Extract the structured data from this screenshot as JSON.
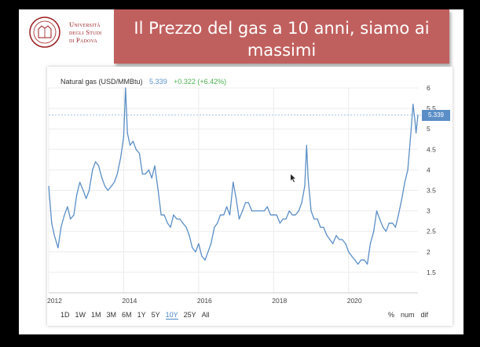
{
  "header": {
    "university_line1": "Università",
    "university_line2": "degli Studi",
    "university_line3": "di Padova",
    "title_line1": "Il Prezzo del gas a 10 anni, siamo ai",
    "title_line2": "massimi"
  },
  "legend": {
    "name": "Natural gas (USD/MMBtu)",
    "value": "5.339",
    "change": "+0.322 (+6.42%)"
  },
  "badge": "5.339",
  "ranges": [
    "1D",
    "1W",
    "1M",
    "3M",
    "6M",
    "1Y",
    "5Y",
    "10Y",
    "25Y",
    "All"
  ],
  "active_range": "10Y",
  "right_buttons": [
    "%",
    "num",
    "dif"
  ],
  "colors": {
    "line": "#5b8ec6",
    "title_bg": "#c0605e",
    "brand": "#9b1b1f"
  },
  "chart_data": {
    "type": "line",
    "xlabel": "",
    "ylabel": "",
    "ylim": [
      1,
      6
    ],
    "xlim": [
      2012.0,
      2021.85
    ],
    "x_ticks": [
      "2012",
      "2014",
      "2016",
      "2018",
      "2020"
    ],
    "x_tick_values": [
      2012,
      2014,
      2016,
      2018,
      2020
    ],
    "y_ticks": [
      "1.5",
      "2",
      "2.5",
      "3",
      "3.5",
      "4",
      "4.5",
      "5",
      "5.5",
      "6"
    ],
    "y_tick_values": [
      1.5,
      2,
      2.5,
      3,
      3.5,
      4,
      4.5,
      5,
      5.5,
      6
    ],
    "current_value": 5.339,
    "series": [
      {
        "x": [
          2012.0,
          2012.08,
          2012.15,
          2012.25,
          2012.33,
          2012.42,
          2012.5,
          2012.58,
          2012.67,
          2012.75,
          2012.83,
          2012.92,
          2013.0,
          2013.08,
          2013.17,
          2013.25,
          2013.33,
          2013.42,
          2013.5,
          2013.58,
          2013.67,
          2013.75,
          2013.83,
          2013.92,
          2014.0,
          2014.05,
          2014.1,
          2014.17,
          2014.25,
          2014.33,
          2014.42,
          2014.5,
          2014.58,
          2014.67,
          2014.75,
          2014.83,
          2014.92,
          2015.0,
          2015.08,
          2015.17,
          2015.25,
          2015.33,
          2015.42,
          2015.5,
          2015.58,
          2015.67,
          2015.75,
          2015.83,
          2015.92,
          2016.0,
          2016.08,
          2016.17,
          2016.25,
          2016.33,
          2016.42,
          2016.5,
          2016.58,
          2016.67,
          2016.75,
          2016.83,
          2016.92,
          2017.0,
          2017.08,
          2017.17,
          2017.25,
          2017.33,
          2017.42,
          2017.5,
          2017.58,
          2017.67,
          2017.75,
          2017.83,
          2017.92,
          2018.0,
          2018.08,
          2018.17,
          2018.25,
          2018.33,
          2018.42,
          2018.5,
          2018.58,
          2018.67,
          2018.75,
          2018.83,
          2018.88,
          2018.92,
          2019.0,
          2019.08,
          2019.17,
          2019.25,
          2019.33,
          2019.42,
          2019.5,
          2019.58,
          2019.67,
          2019.75,
          2019.83,
          2019.92,
          2020.0,
          2020.08,
          2020.17,
          2020.25,
          2020.33,
          2020.42,
          2020.5,
          2020.58,
          2020.67,
          2020.75,
          2020.83,
          2020.92,
          2021.0,
          2021.08,
          2021.17,
          2021.25,
          2021.33,
          2021.42,
          2021.5,
          2021.58,
          2021.67,
          2021.72,
          2021.77,
          2021.8,
          2021.85
        ],
        "y": [
          3.6,
          2.7,
          2.4,
          2.1,
          2.6,
          2.9,
          3.1,
          2.8,
          2.9,
          3.4,
          3.7,
          3.5,
          3.3,
          3.5,
          4.0,
          4.2,
          4.1,
          3.8,
          3.6,
          3.5,
          3.6,
          3.7,
          3.9,
          4.3,
          4.8,
          6.0,
          4.9,
          4.6,
          4.7,
          4.5,
          4.4,
          3.9,
          3.9,
          4.0,
          3.8,
          4.1,
          3.5,
          2.9,
          2.9,
          2.7,
          2.6,
          2.9,
          2.8,
          2.8,
          2.7,
          2.6,
          2.4,
          2.1,
          2.0,
          2.2,
          1.9,
          1.8,
          2.0,
          2.2,
          2.6,
          2.7,
          2.9,
          2.9,
          3.1,
          2.9,
          3.7,
          3.3,
          2.8,
          3.0,
          3.2,
          3.2,
          3.0,
          3.0,
          3.0,
          3.0,
          3.0,
          3.1,
          2.9,
          2.9,
          2.9,
          2.7,
          2.8,
          2.8,
          3.0,
          2.9,
          2.9,
          3.0,
          3.2,
          3.6,
          4.6,
          3.8,
          3.0,
          2.8,
          2.8,
          2.6,
          2.6,
          2.4,
          2.3,
          2.2,
          2.4,
          2.3,
          2.3,
          2.2,
          2.0,
          1.9,
          1.8,
          1.7,
          1.8,
          1.8,
          1.7,
          2.2,
          2.5,
          3.0,
          2.8,
          2.6,
          2.5,
          2.7,
          2.7,
          2.6,
          2.9,
          3.3,
          3.7,
          4.0,
          5.0,
          5.6,
          5.2,
          4.9,
          5.34
        ]
      }
    ]
  }
}
